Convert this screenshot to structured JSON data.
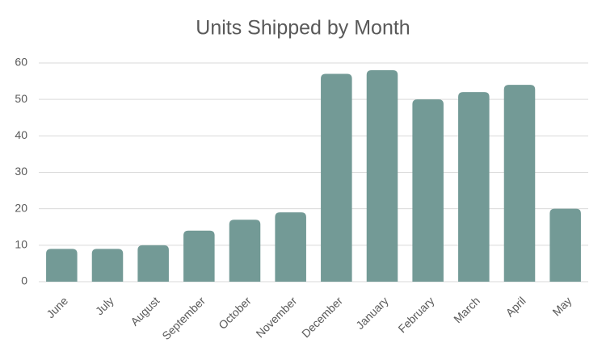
{
  "chart_data": {
    "type": "bar",
    "title": "Units Shipped by Month",
    "categories": [
      "June",
      "July",
      "August",
      "September",
      "October",
      "November",
      "December",
      "January",
      "February",
      "March",
      "April",
      "May"
    ],
    "values": [
      9,
      9,
      10,
      14,
      17,
      19,
      57,
      58,
      50,
      52,
      54,
      20
    ],
    "color": "#739a96",
    "ylim": [
      0,
      60
    ],
    "yticks": [
      0,
      10,
      20,
      30,
      40,
      50,
      60
    ],
    "grid": true
  }
}
